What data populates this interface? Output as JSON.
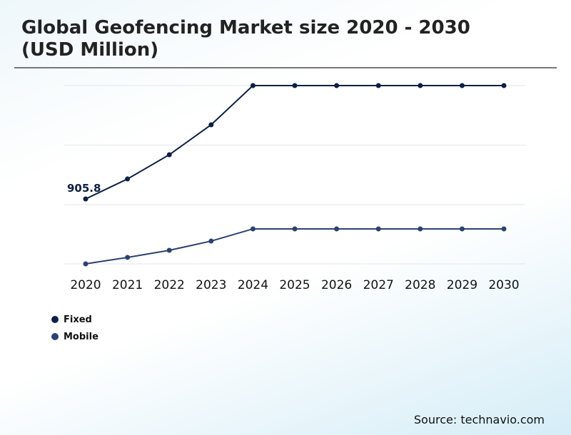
{
  "title": "Global Geofencing Market size 2020 - 2030 (USD Million)",
  "source": "Source: technavio.com",
  "chart_data": {
    "type": "line",
    "title": "Global Geofencing Market size 2020 - 2030 (USD Million)",
    "categories": [
      "2020",
      "2021",
      "2022",
      "2023",
      "2024",
      "2025",
      "2026",
      "2027",
      "2028",
      "2029",
      "2030"
    ],
    "series": [
      {
        "name": "Fixed",
        "color": "#0c1f45",
        "values": [
          905.8,
          1185,
          1523,
          1941,
          2488,
          2488,
          2488,
          2488,
          2488,
          2488,
          2488
        ]
      },
      {
        "name": "Mobile",
        "color": "#2b4172",
        "values": [
          0,
          90,
          189,
          318,
          488,
          488,
          488,
          488,
          488,
          488,
          488
        ]
      }
    ],
    "data_labels": [
      {
        "series": "Fixed",
        "category": "2020",
        "text": "905.8"
      }
    ],
    "ylim": [
      0,
      2488
    ],
    "y_axis_labels": false,
    "grid": true,
    "legend": "bottom-left"
  }
}
